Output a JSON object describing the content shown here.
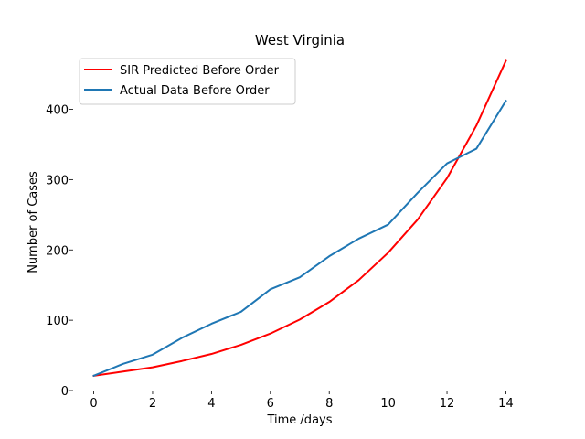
{
  "chart_data": {
    "type": "line",
    "title": "West Virginia",
    "xlabel": "Time /days",
    "ylabel": "Number of Cases",
    "xlim": [
      -0.7,
      14.7
    ],
    "ylim": [
      0,
      480
    ],
    "x_ticks": [
      0,
      2,
      4,
      6,
      8,
      10,
      12,
      14
    ],
    "y_ticks": [
      0,
      100,
      200,
      300,
      400
    ],
    "grid": false,
    "legend_position": "top-left",
    "x": [
      0,
      1,
      2,
      3,
      4,
      5,
      6,
      7,
      8,
      9,
      10,
      11,
      12,
      13,
      14
    ],
    "series": [
      {
        "name": "SIR Predicted Before Order",
        "color": "#ff0000",
        "values": [
          21,
          27,
          33,
          42,
          52,
          65,
          81,
          101,
          126,
          157,
          196,
          243,
          302,
          377,
          469
        ]
      },
      {
        "name": "Actual Data Before Order",
        "color": "#1f77b4",
        "values": [
          21,
          38,
          51,
          75,
          95,
          112,
          144,
          161,
          191,
          216,
          236,
          281,
          323,
          344,
          412
        ]
      }
    ]
  }
}
